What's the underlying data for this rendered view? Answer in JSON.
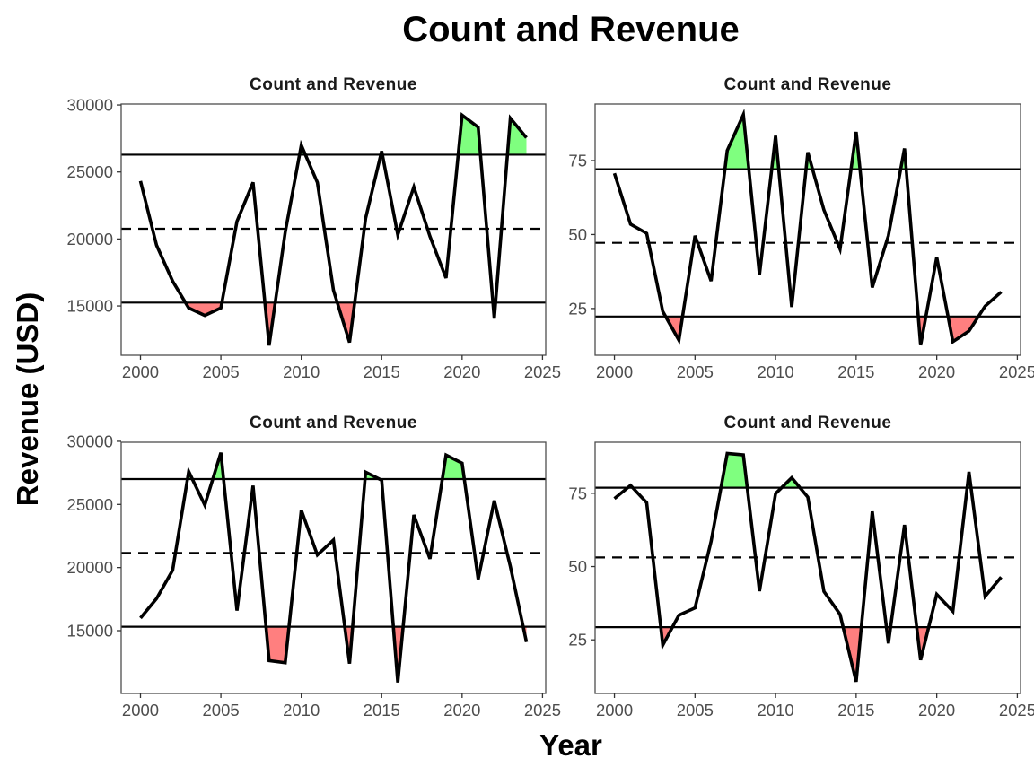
{
  "chart_data": {
    "type": "line",
    "title": "Count and Revenue",
    "xlabel": "Year",
    "ylabel": "Revenue (USD)",
    "fill_colors": {
      "above": "#7FFF7F",
      "below": "#FF7F7F"
    },
    "line_color": "#000000",
    "panels": [
      {
        "title": "Count and Revenue",
        "xlim": [
          1998.8,
          2025.2
        ],
        "ylim": [
          11320,
          30070
        ],
        "x_ticks": [
          2000,
          2005,
          2010,
          2015,
          2020,
          2025
        ],
        "x_tick_labels": [
          "2000",
          "2005",
          "2010",
          "2015",
          "2020",
          "2025"
        ],
        "y_ticks": [
          15000,
          20000,
          25000,
          30000
        ],
        "y_tick_labels": [
          "15000",
          "20000",
          "25000",
          "30000"
        ],
        "x": [
          2000,
          2001,
          2002,
          2003,
          2004,
          2005,
          2006,
          2007,
          2008,
          2009,
          2010,
          2011,
          2012,
          2013,
          2014,
          2015,
          2016,
          2017,
          2018,
          2019,
          2020,
          2021,
          2022,
          2023,
          2024
        ],
        "values": [
          24320,
          19530,
          16850,
          14850,
          14290,
          14850,
          21310,
          24220,
          12050,
          20500,
          27000,
          24220,
          16180,
          12280,
          21540,
          26560,
          20310,
          23880,
          20200,
          17080,
          29240,
          28340,
          14060,
          29010,
          27560
        ],
        "upper_line": 26290,
        "mean_line": 20760,
        "lower_line": 15250
      },
      {
        "title": "Count and Revenue",
        "xlim": [
          1998.8,
          2025.2
        ],
        "ylim": [
          9.2,
          94.1
        ],
        "x_ticks": [
          2000,
          2005,
          2010,
          2015,
          2020,
          2025
        ],
        "x_tick_labels": [
          "2000",
          "2005",
          "2010",
          "2015",
          "2020",
          "2025"
        ],
        "y_ticks": [
          25,
          50,
          75
        ],
        "y_tick_labels": [
          "25",
          "50",
          "75"
        ],
        "x": [
          2000,
          2001,
          2002,
          2003,
          2004,
          2005,
          2006,
          2007,
          2008,
          2009,
          2010,
          2011,
          2012,
          2013,
          2014,
          2015,
          2016,
          2017,
          2018,
          2019,
          2020,
          2021,
          2022,
          2023,
          2024
        ],
        "values": [
          70.7,
          53.5,
          50.4,
          24.0,
          14.3,
          49.6,
          34.3,
          78.4,
          90.5,
          36.4,
          83.4,
          25.5,
          77.8,
          58.3,
          45.1,
          84.7,
          32.1,
          49.6,
          79.1,
          12.6,
          42.3,
          13.8,
          17.4,
          25.8,
          30.6
        ],
        "upper_line": 72.1,
        "mean_line": 47.2,
        "lower_line": 22.3
      },
      {
        "title": "Count and Revenue",
        "xlim": [
          1998.8,
          2025.2
        ],
        "ylim": [
          10025,
          29925
        ],
        "x_ticks": [
          2000,
          2005,
          2010,
          2015,
          2020,
          2025
        ],
        "x_tick_labels": [
          "2000",
          "2005",
          "2010",
          "2015",
          "2020",
          "2025"
        ],
        "y_ticks": [
          15000,
          20000,
          25000,
          30000
        ],
        "y_tick_labels": [
          "15000",
          "20000",
          "25000",
          "30000"
        ],
        "x": [
          2000,
          2001,
          2002,
          2003,
          2004,
          2005,
          2006,
          2007,
          2008,
          2009,
          2010,
          2011,
          2012,
          2013,
          2014,
          2015,
          2016,
          2017,
          2018,
          2019,
          2020,
          2021,
          2022,
          2023,
          2024
        ],
        "values": [
          16000,
          17540,
          19790,
          27610,
          24950,
          29100,
          16590,
          26490,
          12630,
          12460,
          24550,
          21000,
          22180,
          12390,
          27560,
          26920,
          10900,
          24170,
          20690,
          28910,
          28270,
          19080,
          25310,
          20090,
          14100
        ],
        "upper_line": 27010,
        "mean_line": 21160,
        "lower_line": 15310
      },
      {
        "title": "Count and Revenue",
        "xlim": [
          1998.8,
          2025.2
        ],
        "ylim": [
          6.7,
          92.4
        ],
        "x_ticks": [
          2000,
          2005,
          2010,
          2015,
          2020,
          2025
        ],
        "x_tick_labels": [
          "2000",
          "2005",
          "2010",
          "2015",
          "2020",
          "2025"
        ],
        "y_ticks": [
          25,
          50,
          75
        ],
        "y_tick_labels": [
          "25",
          "50",
          "75"
        ],
        "x": [
          2000,
          2001,
          2002,
          2003,
          2004,
          2005,
          2006,
          2007,
          2008,
          2009,
          2010,
          2011,
          2012,
          2013,
          2014,
          2015,
          2016,
          2017,
          2018,
          2019,
          2020,
          2021,
          2022,
          2023,
          2024
        ],
        "values": [
          73.2,
          77.7,
          71.8,
          23.2,
          33.4,
          35.9,
          58.6,
          88.6,
          88.1,
          41.6,
          74.9,
          80.3,
          73.7,
          41.5,
          33.7,
          10.7,
          68.8,
          23.8,
          64.2,
          18.1,
          40.5,
          34.7,
          82.3,
          39.8,
          46.4
        ],
        "upper_line": 76.9,
        "mean_line": 53.1,
        "lower_line": 29.3
      }
    ],
    "grid": false,
    "legend": "none"
  }
}
